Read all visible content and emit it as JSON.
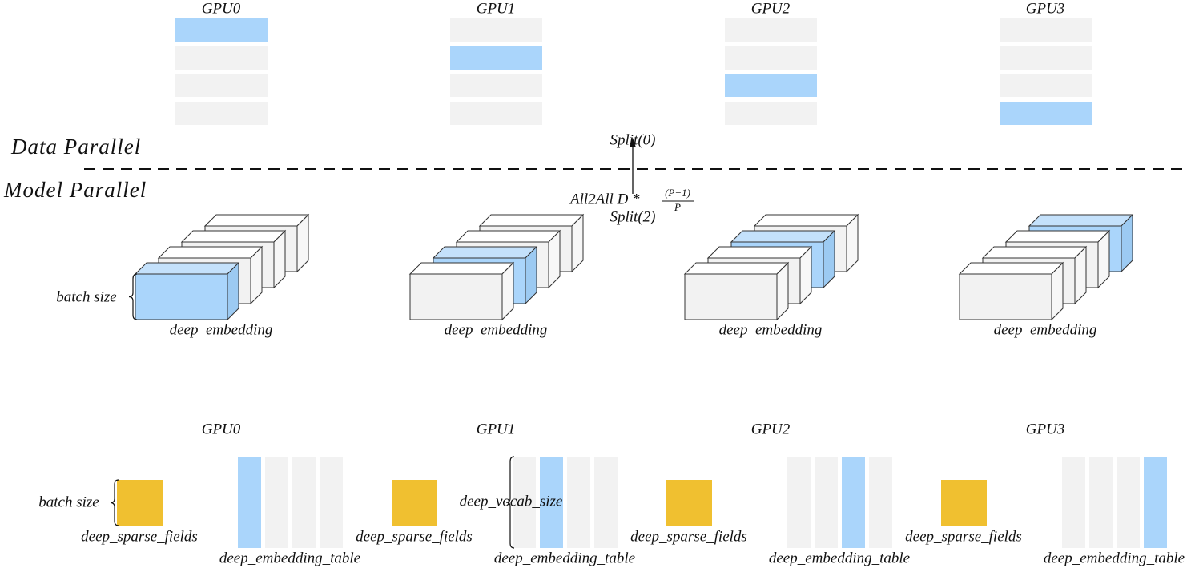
{
  "data_parallel": {
    "label": "Data Parallel",
    "gpus": [
      "GPU0",
      "GPU1",
      "GPU2",
      "GPU3"
    ]
  },
  "model_parallel": {
    "label": "Model Parallel",
    "box_label": "deep_embedding",
    "batch_size_label": "batch size"
  },
  "transfer": {
    "split_top": "Split(0)",
    "all2all": "All2All D *",
    "fraction_numerator": "(P−1)",
    "fraction_denominator": "P",
    "split_bottom": "Split(2)"
  },
  "bottom": {
    "gpus": [
      "GPU0",
      "GPU1",
      "GPU2",
      "GPU3"
    ],
    "sparse_label": "deep_sparse_fields",
    "table_label": "deep_embedding_table",
    "batch_size_label": "batch size",
    "vocab_size_label": "deep_vocab_size"
  }
}
